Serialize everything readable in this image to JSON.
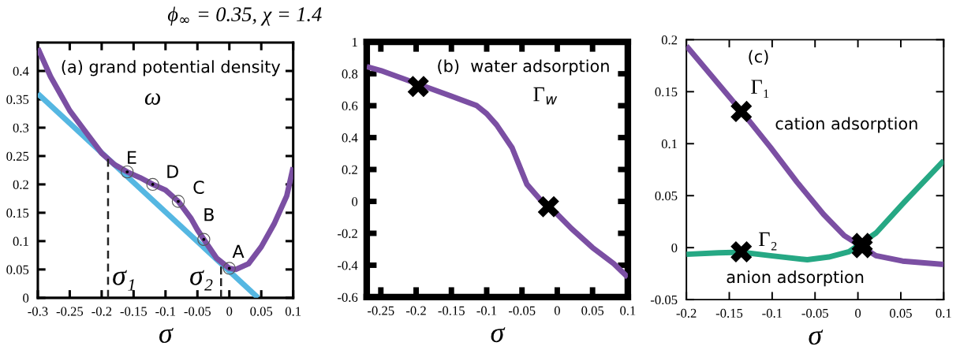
{
  "chart_data": [
    {
      "type": "line",
      "title": "ϕ$_{∞}$ = 0.35, χ = 1.4",
      "xlabel": "σ",
      "xlim": [
        -0.3,
        0.1
      ],
      "ylim": [
        0,
        0.45
      ],
      "xticks": [
        -0.3,
        -0.25,
        -0.2,
        -0.15,
        -0.1,
        -0.05,
        0,
        0.05,
        0.1
      ],
      "yticks": [
        0,
        0.05,
        0.1,
        0.15,
        0.2,
        0.25,
        0.3,
        0.35,
        0.4
      ],
      "grid": false,
      "legend": false,
      "series": [
        {
          "color": "#55b7e2",
          "x": [
            -0.3,
            0.045
          ],
          "values": [
            0.36,
            0.0
          ]
        },
        {
          "color": "#7b4fa3",
          "x": [
            -0.3,
            -0.28,
            -0.26,
            -0.25,
            -0.23,
            -0.2,
            -0.18,
            -0.16,
            -0.14,
            -0.12,
            -0.1,
            -0.08,
            -0.06,
            -0.05,
            -0.04,
            -0.02,
            0,
            0.01,
            0.03,
            0.05,
            0.07,
            0.09,
            0.1
          ],
          "values": [
            0.44,
            0.39,
            0.35,
            0.33,
            0.3,
            0.255,
            0.235,
            0.222,
            0.212,
            0.2,
            0.19,
            0.17,
            0.14,
            0.12,
            0.103,
            0.07,
            0.052,
            0.05,
            0.06,
            0.09,
            0.13,
            0.18,
            0.23
          ]
        },
        {
          "color": "#222222",
          "line_style": "dashed",
          "x": [
            -0.19,
            -0.19
          ],
          "values": [
            0,
            0.245
          ]
        },
        {
          "color": "#222222",
          "line_style": "dashed",
          "x": [
            -0.013,
            -0.013
          ],
          "values": [
            0,
            0.055
          ]
        },
        {
          "type": "scatter",
          "marker": "circle",
          "color": "#555555",
          "x": [
            0,
            -0.04,
            -0.08,
            -0.12,
            -0.16
          ],
          "values": [
            0.052,
            0.103,
            0.17,
            0.2,
            0.222
          ]
        }
      ],
      "annotations": [
        "(a) grand potential density",
        "ω",
        "A",
        "B",
        "C",
        "D",
        "E",
        "σ₁",
        "σ₂"
      ]
    },
    {
      "type": "line",
      "xlabel": "σ",
      "xlim": [
        -0.27,
        0.1
      ],
      "ylim": [
        -0.6,
        1
      ],
      "xticks": [
        -0.25,
        -0.2,
        -0.15,
        -0.1,
        -0.05,
        0,
        0.05,
        0.1
      ],
      "yticks": [
        -0.6,
        -0.4,
        -0.2,
        0,
        0.2,
        0.4,
        0.6,
        0.8,
        1
      ],
      "grid": false,
      "legend": false,
      "series": [
        {
          "color": "#7b4fa3",
          "x": [
            -0.27,
            -0.25,
            -0.15,
            -0.114,
            -0.1,
            -0.086,
            -0.064,
            -0.043,
            -0.02,
            0,
            0.02,
            0.05,
            0.08,
            0.1
          ],
          "values": [
            0.845,
            0.82,
            0.66,
            0.6,
            0.55,
            0.48,
            0.336,
            0.107,
            -0.01,
            -0.08,
            -0.17,
            -0.29,
            -0.39,
            -0.475
          ]
        },
        {
          "type": "scatter",
          "marker": "cross",
          "color": "#000000",
          "x": [
            -0.197,
            -0.0125
          ],
          "values": [
            0.72,
            -0.033
          ]
        }
      ],
      "annotations": [
        "(b)  water adsorption",
        "Γ$_{w}$"
      ]
    },
    {
      "type": "line",
      "xlabel": "σ",
      "xlim": [
        -0.2,
        0.1
      ],
      "ylim": [
        -0.05,
        0.2
      ],
      "xticks": [
        -0.2,
        -0.15,
        -0.1,
        -0.05,
        0,
        0.05,
        0.1
      ],
      "yticks": [
        -0.05,
        0,
        0.05,
        0.1,
        0.15,
        0.2
      ],
      "grid": false,
      "legend": false,
      "series": [
        {
          "color": "#7b4fa3",
          "x": [
            -0.2,
            -0.1356,
            -0.102,
            -0.071,
            -0.04,
            -0.016,
            0.021,
            0.052,
            0.1
          ],
          "values": [
            0.194,
            0.131,
            0.0965,
            0.063,
            0.032,
            0.0116,
            -0.0077,
            -0.0129,
            -0.0162
          ]
        },
        {
          "color": "#26a884",
          "x": [
            -0.2,
            -0.163,
            -0.136,
            -0.102,
            -0.059,
            -0.034,
            -0.0104,
            0.021,
            0.052,
            0.1
          ],
          "values": [
            -0.0064,
            -0.005,
            -0.0044,
            -0.0077,
            -0.0116,
            -0.009,
            -0.0039,
            0.014,
            0.042,
            0.0836
          ]
        },
        {
          "type": "scatter",
          "marker": "cross",
          "color": "#000000",
          "x": [
            -0.136,
            -0.136,
            0.005,
            0.005
          ],
          "values": [
            0.131,
            -0.004,
            0.004,
            0.0
          ]
        }
      ],
      "annotations": [
        "(c)",
        "Γ₁",
        "cation adsorption",
        "Γ₂",
        "anion adsorption"
      ]
    }
  ]
}
